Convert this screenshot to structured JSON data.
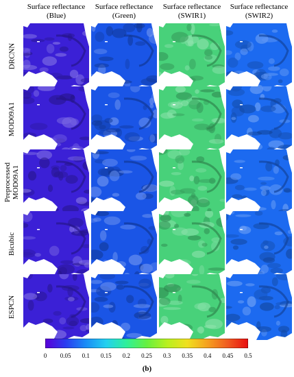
{
  "columns": [
    {
      "line1": "Surface reflectance",
      "line2": "(Blue)",
      "color": "#3b20d6"
    },
    {
      "line1": "Surface reflectance",
      "line2": "(Green)",
      "color": "#1a55e6"
    },
    {
      "line1": "Surface reflectance",
      "line2": "(SWIR1)",
      "color": "#48d17a"
    },
    {
      "line1": "Surface reflectance",
      "line2": "(SWIR2)",
      "color": "#1c6af0"
    }
  ],
  "rows": [
    {
      "label": "DRCNN"
    },
    {
      "label": "MOD09A1"
    },
    {
      "label": "Preprocessed MOD09A1",
      "line1": "Preprocessed",
      "line2": "MOD09A1"
    },
    {
      "label": "Bicubic"
    },
    {
      "label": "ESPCN"
    }
  ],
  "colorbar": {
    "ticks": [
      "0",
      "0.05",
      "0.1",
      "0.15",
      "0.2",
      "0.25",
      "0.3",
      "0.35",
      "0.4",
      "0.45",
      "0.5"
    ],
    "colors": [
      "#5a00d8",
      "#2a3cf0",
      "#1a8cf6",
      "#22d0f0",
      "#2ef09a",
      "#66f040",
      "#b8f020",
      "#f0e020",
      "#f5a020",
      "#f05a20",
      "#e80e10"
    ]
  },
  "caption": "(b)"
}
